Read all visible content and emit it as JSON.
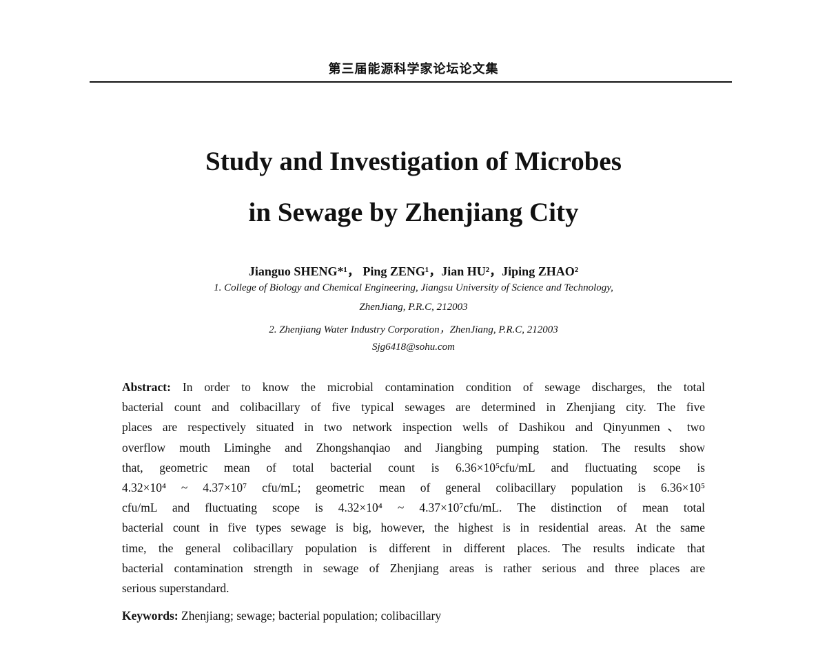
{
  "running_header": "第三届能源科学家论坛论文集",
  "title": [
    "Study and Investigation of Microbes",
    "in Sewage by Zhenjiang City"
  ],
  "authors": "Jianguo SHENG*¹，  Ping ZENG¹，Jian HU²，Jiping ZHAO²",
  "affiliations": [
    "1. College of Biology and Chemical Engineering, Jiangsu University of Science and Technology,",
    "ZhenJiang, P.R.C, 212003",
    "2. Zhenjiang Water Industry Corporation，ZhenJiang, P.R.C, 212003",
    "Sjg6418@sohu.com"
  ],
  "abstract": {
    "label": "Abstract:",
    "lines": [
      " In order to know the microbial contamination condition of sewage discharges, the total",
      "bacterial count and colibacillary of five typical sewages are determined in Zhenjiang city. The five",
      "places are respectively situated in two network inspection wells of Dashikou and Qinyunmen、two",
      "overflow mouth Liminghe and Zhongshanqiao and Jiangbing pumping station. The results show",
      "that, geometric mean of total bacterial count is 6.36×10⁵cfu/mL and fluctuating scope is",
      "4.32×10⁴ ~ 4.37×10⁷ cfu/mL; geometric mean of general colibacillary population is 6.36×10⁵",
      "cfu/mL and fluctuating scope is 4.32×10⁴ ~ 4.37×10⁷cfu/mL. The distinction of mean total",
      "bacterial count in five types sewage is big, however, the highest is in residential areas. At the same",
      "time, the general colibacillary population is different in different places. The results indicate that",
      "bacterial contamination strength in sewage of Zhenjiang areas is rather serious and three places are",
      "serious superstandard."
    ]
  },
  "keywords": {
    "label": "Keywords:",
    "text": " Zhenjiang; sewage; bacterial population; colibacillary"
  }
}
